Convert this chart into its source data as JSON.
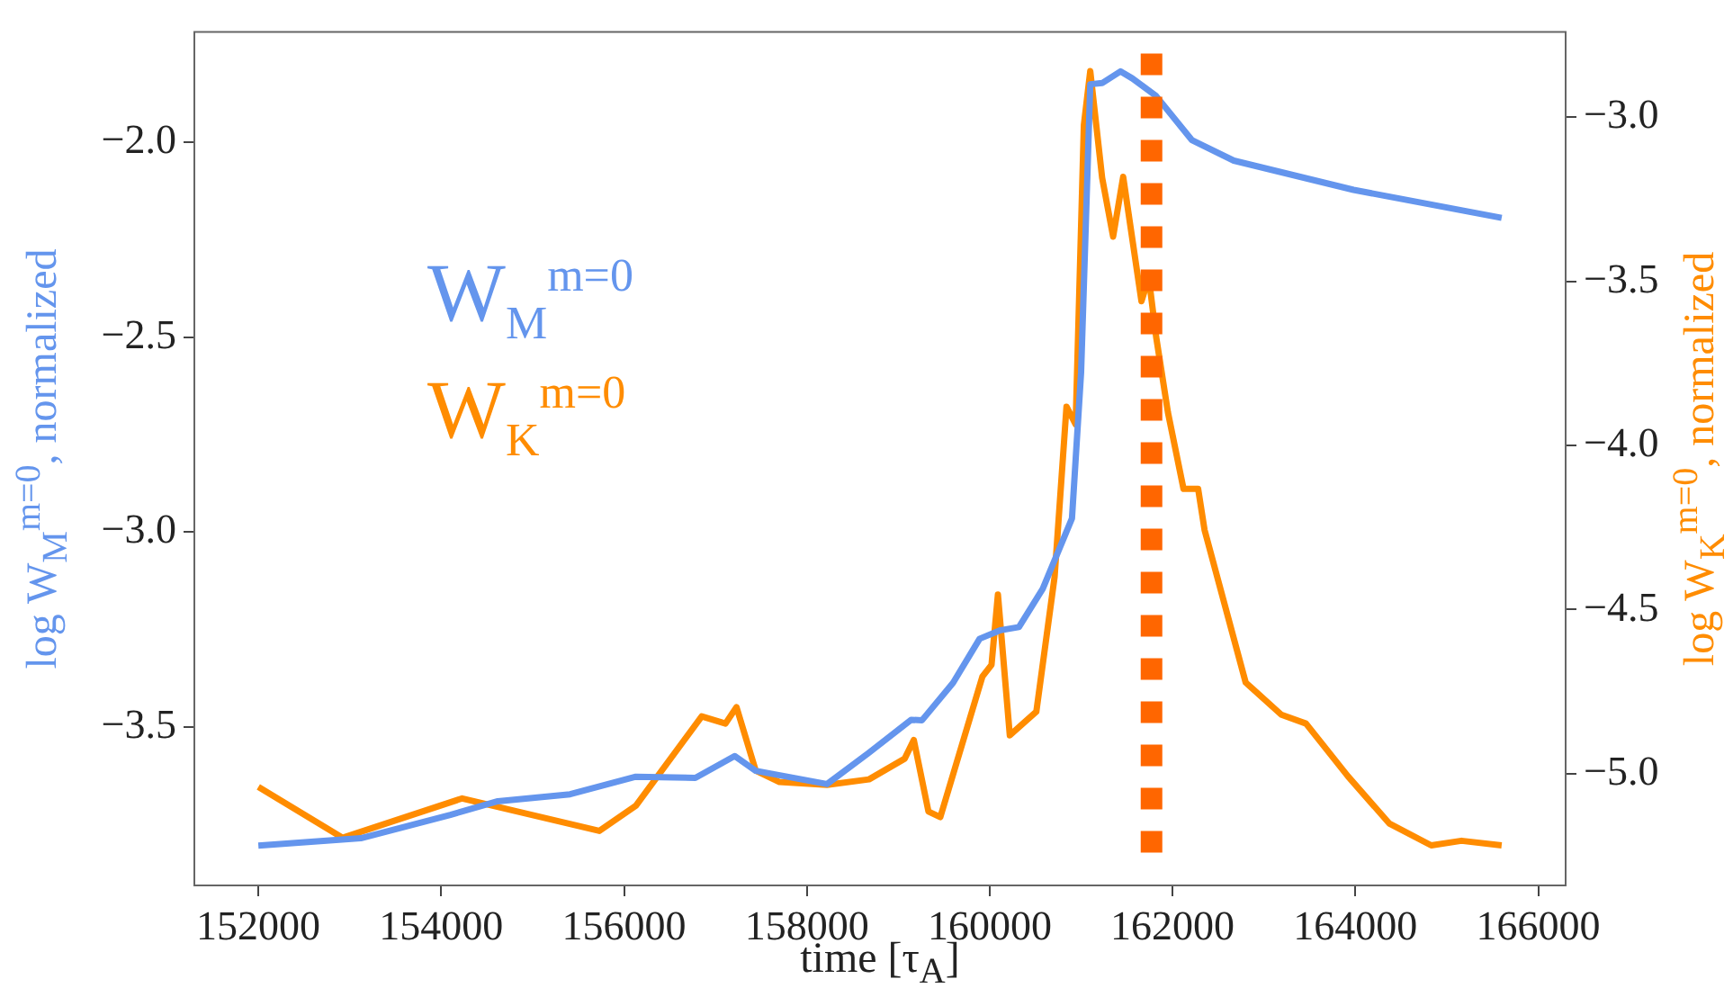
{
  "chart_data": {
    "type": "line",
    "xlabel": "time [τ$_{A}$]",
    "ylabel": "log W$_{M}$$^{m=0}$, normalized",
    "y2label": "log W$_{K}$$^{m=0}$, normalized",
    "xlim": [
      151300,
      166300
    ],
    "xticks": [
      152000,
      154000,
      156000,
      158000,
      160000,
      162000,
      164000,
      166000
    ],
    "ylim": [
      -3.907,
      -1.717
    ],
    "yticks": [
      {
        "value": -3.5,
        "label": "−3.5"
      },
      {
        "value": -3.0,
        "label": "−3.0"
      },
      {
        "value": -2.5,
        "label": "−2.5"
      },
      {
        "value": -2.0,
        "label": "−2.0"
      }
    ],
    "y2lim": [
      -5.34,
      -2.741
    ],
    "y2ticks": [
      {
        "value": -5.0,
        "label": "−5.0"
      },
      {
        "value": -4.5,
        "label": "−4.5"
      },
      {
        "value": -4.0,
        "label": "−4.0"
      },
      {
        "value": -3.5,
        "label": "−3.5"
      },
      {
        "value": -3.0,
        "label": "−3.0"
      }
    ],
    "grid": false,
    "legend": "left",
    "marker": "none",
    "line_style": "solid",
    "series": [
      {
        "name": "W$_{M}$$^{m=0}$",
        "color": "#6495ed",
        "x": [
          152000,
          153120,
          154100,
          154620,
          155410,
          156130,
          156780,
          157210,
          157440,
          158220,
          158670,
          159140,
          159260,
          159600,
          159890,
          160120,
          160320,
          160580,
          160900,
          161000,
          161100,
          161230,
          161430,
          161560,
          161820,
          162210,
          162670,
          163980,
          165600
        ],
        "values": [
          -3.805,
          -3.786,
          -3.726,
          -3.691,
          -3.673,
          -3.628,
          -3.631,
          -3.575,
          -3.613,
          -3.647,
          -3.568,
          -3.482,
          -3.483,
          -3.387,
          -3.274,
          -3.252,
          -3.244,
          -3.146,
          -2.965,
          -2.589,
          -1.851,
          -1.848,
          -1.818,
          -1.836,
          -1.881,
          -1.994,
          -2.047,
          -2.122,
          -2.194
        ]
      },
      {
        "name": "W$_{K}$$^{m=0}$",
        "color": "#ff8c00",
        "axis": "y2",
        "x": [
          152000,
          152920,
          154230,
          155730,
          156130,
          156850,
          157110,
          157230,
          157440,
          157700,
          158220,
          158680,
          159070,
          159170,
          159330,
          159460,
          159920,
          160020,
          160090,
          160220,
          160510,
          160710,
          160840,
          160940,
          161030,
          161100,
          161230,
          161350,
          161460,
          161660,
          161740,
          161820,
          161950,
          162120,
          162280,
          162350,
          162800,
          163190,
          163460,
          163920,
          164370,
          164830,
          165160,
          165600
        ],
        "values": [
          -5.04,
          -5.195,
          -5.075,
          -5.174,
          -5.097,
          -4.825,
          -4.847,
          -4.797,
          -4.99,
          -5.025,
          -5.034,
          -5.017,
          -4.954,
          -4.897,
          -5.115,
          -5.132,
          -4.704,
          -4.668,
          -4.454,
          -4.883,
          -4.811,
          -4.4,
          -3.882,
          -3.936,
          -3.025,
          -2.86,
          -3.185,
          -3.364,
          -3.182,
          -3.561,
          -3.489,
          -3.668,
          -3.9,
          -4.132,
          -4.132,
          -4.257,
          -4.722,
          -4.82,
          -4.847,
          -5.008,
          -5.151,
          -5.218,
          -5.204,
          -5.218
        ]
      }
    ],
    "ref_lines": [
      {
        "axis": "x",
        "value": 161770,
        "color": "#ff6600",
        "line_style": "dotted"
      }
    ]
  }
}
